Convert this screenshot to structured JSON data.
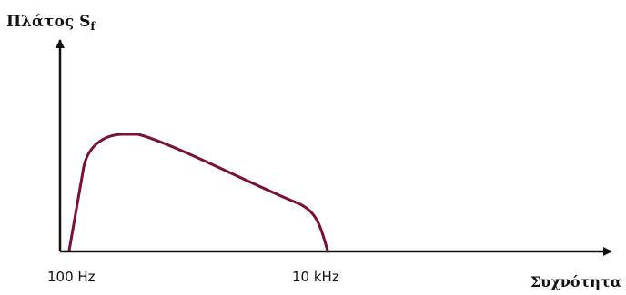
{
  "chart_data": {
    "type": "line",
    "ylabel": "Πλάτος S",
    "ylabel_sub": "f",
    "xlabel": "Συχνότητα",
    "x_ticks": [
      "100 Hz",
      "10 kHz"
    ],
    "series_color": "#7a0f3a",
    "axis_color": "#111111",
    "grid": false,
    "legend": "none"
  }
}
